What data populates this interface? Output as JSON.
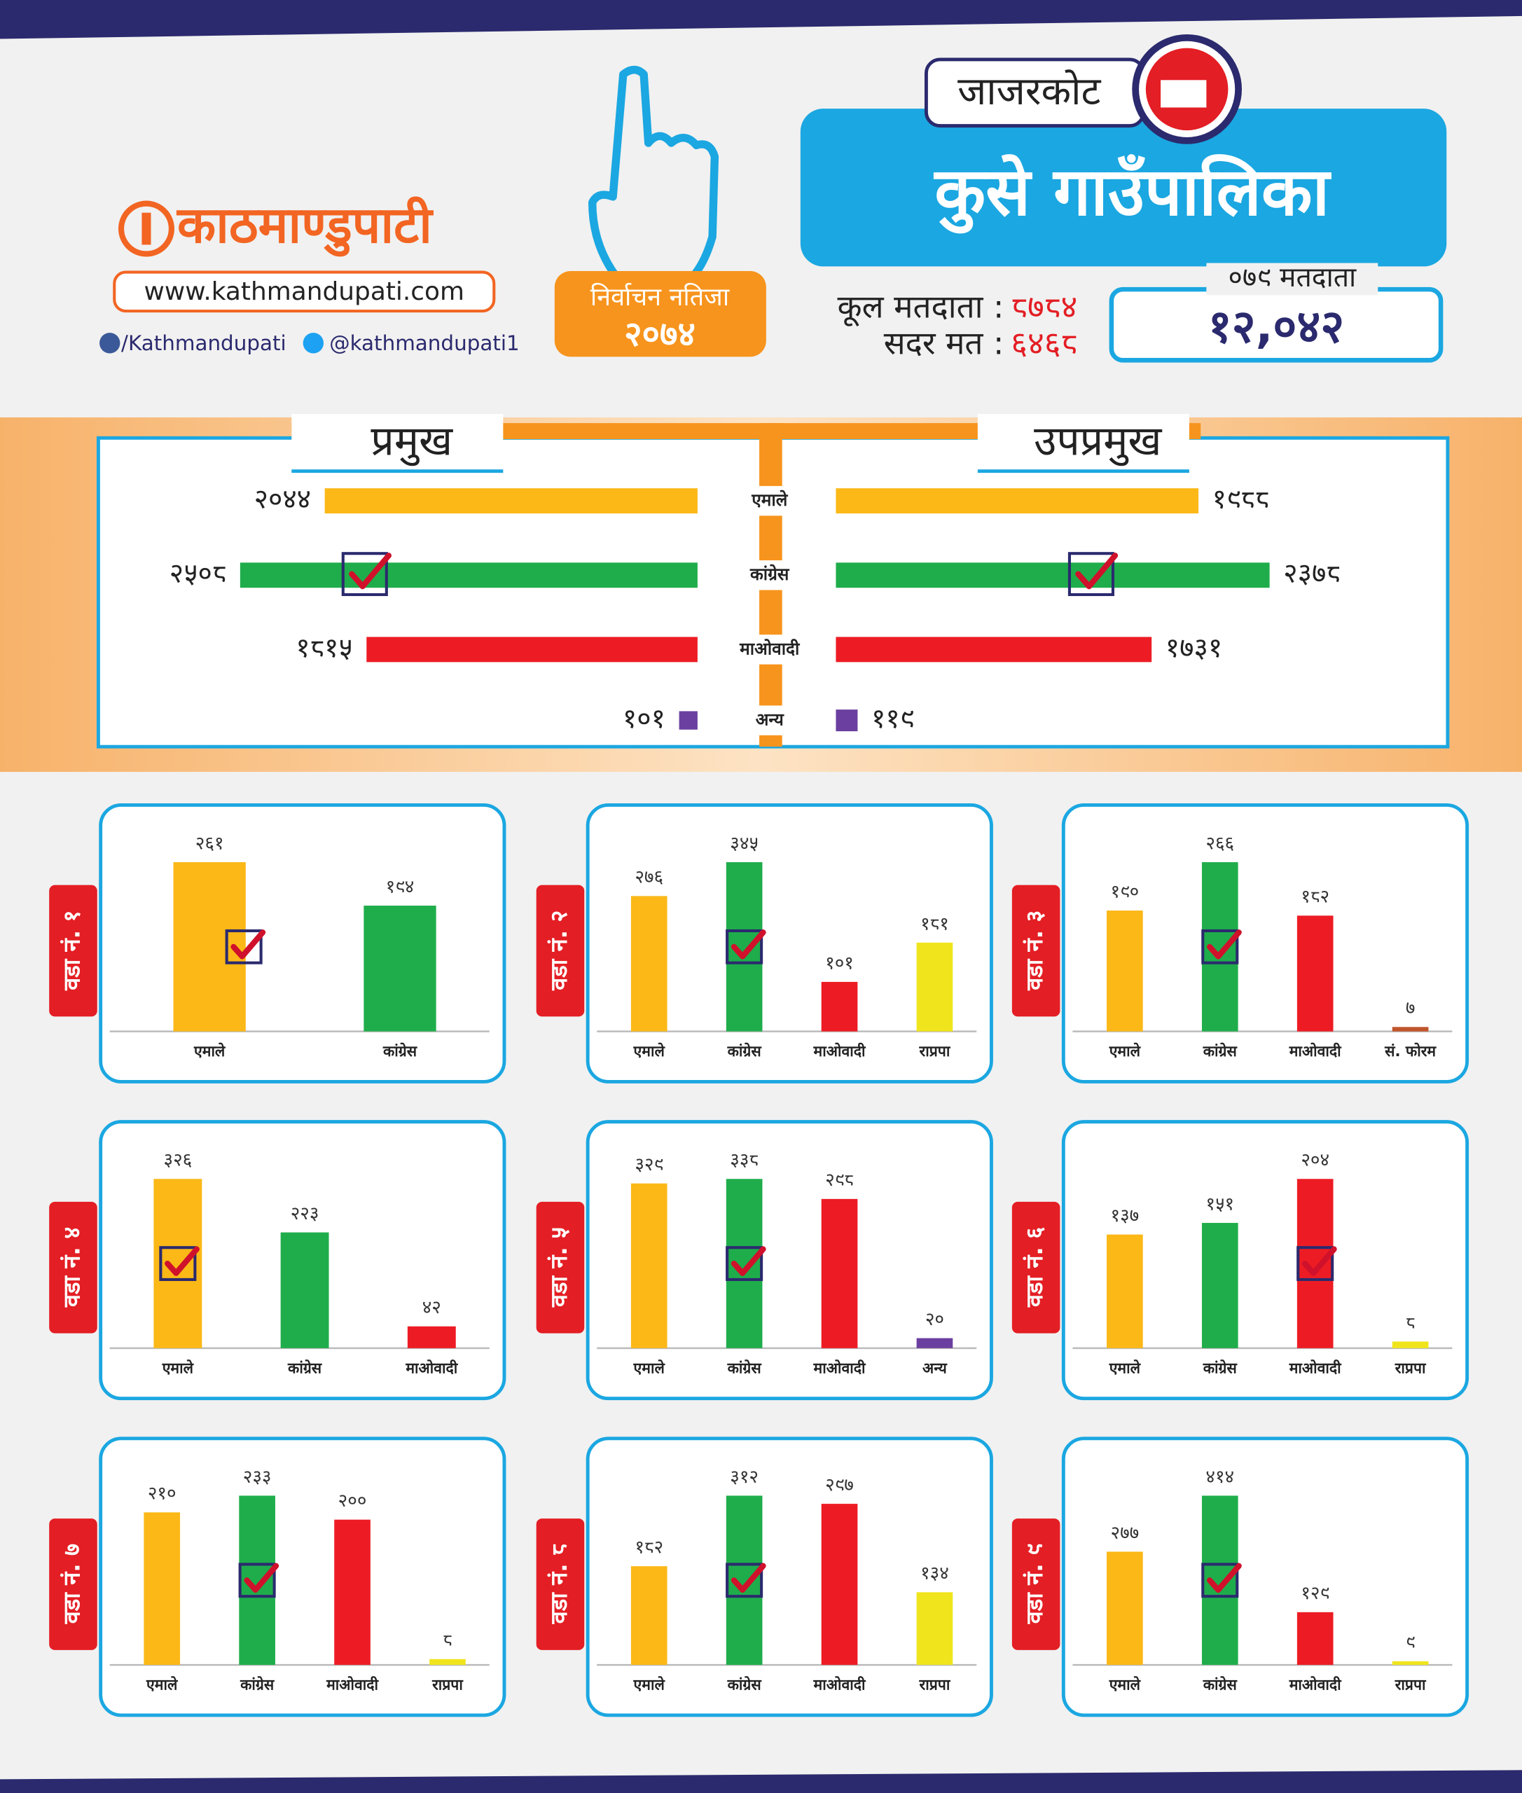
{
  "header": {
    "brand": "काठमाण्डुपाटी",
    "website": "www.kathmandupati.com",
    "facebook": "/Kathmandupati",
    "twitter": "@kathmandupati1",
    "badge_title": "निर्वाचन नतिजा",
    "badge_year": "२०७४",
    "district": "जाजरकोट",
    "municipality": "कुसे गाउँपालिका",
    "total_voters_label": "कूल मतदाता :",
    "total_voters": "८७८४",
    "valid_votes_label": "सदर मत :",
    "valid_votes": "६४६८",
    "voters_2079_label": "०७९ मतदाता",
    "voters_2079": "१२,०४२"
  },
  "chart_data": [
    {
      "type": "bar",
      "categories": [
        "एमाले",
        "कांग्रेस",
        "माओवादी",
        "अन्य"
      ],
      "colors": [
        "#fbb817",
        "#1fad4b",
        "#ed1c24",
        "#6b3fa0"
      ],
      "series": [
        {
          "name": "प्रमुख",
          "values": [
            2044,
            2508,
            1815,
            101
          ],
          "value_labels": [
            "२०४४",
            "२५०८",
            "१८१५",
            "१०१"
          ],
          "winner": 1
        },
        {
          "name": "उपप्रमुख",
          "values": [
            1988,
            2378,
            1731,
            119
          ],
          "value_labels": [
            "१९८८",
            "२३७८",
            "१७३१",
            "११९"
          ],
          "winner": 1
        }
      ]
    },
    {
      "type": "bar",
      "title": "वडा नं. १",
      "categories": [
        "एमाले",
        "कांग्रेस"
      ],
      "colors": [
        "#fbb817",
        "#1fad4b"
      ],
      "values": [
        261,
        194
      ],
      "value_labels": [
        "२६१",
        "१९४"
      ],
      "winner": 0
    },
    {
      "type": "bar",
      "title": "वडा नं. २",
      "categories": [
        "एमाले",
        "कांग्रेस",
        "माओवादी",
        "राप्रपा"
      ],
      "colors": [
        "#fbb817",
        "#1fad4b",
        "#ed1c24",
        "#f0e51d"
      ],
      "values": [
        276,
        345,
        101,
        181
      ],
      "value_labels": [
        "२७६",
        "३४५",
        "१०१",
        "१८१"
      ],
      "winner": 1
    },
    {
      "type": "bar",
      "title": "वडा नं. ३",
      "categories": [
        "एमाले",
        "कांग्रेस",
        "माओवादी",
        "सं. फोरम"
      ],
      "colors": [
        "#fbb817",
        "#1fad4b",
        "#ed1c24",
        "#c0552b"
      ],
      "values": [
        190,
        266,
        182,
        7
      ],
      "value_labels": [
        "१९०",
        "२६६",
        "१८२",
        "७"
      ],
      "winner": 1
    },
    {
      "type": "bar",
      "title": "वडा नं. ४",
      "categories": [
        "एमाले",
        "कांग्रेस",
        "माओवादी"
      ],
      "colors": [
        "#fbb817",
        "#1fad4b",
        "#ed1c24"
      ],
      "values": [
        326,
        223,
        42
      ],
      "value_labels": [
        "३२६",
        "२२३",
        "४२"
      ],
      "winner": 0
    },
    {
      "type": "bar",
      "title": "वडा नं. ५",
      "categories": [
        "एमाले",
        "कांग्रेस",
        "माओवादी",
        "अन्य"
      ],
      "colors": [
        "#fbb817",
        "#1fad4b",
        "#ed1c24",
        "#6b3fa0"
      ],
      "values": [
        329,
        338,
        298,
        20
      ],
      "value_labels": [
        "३२९",
        "३३८",
        "२९८",
        "२०"
      ],
      "winner": 1
    },
    {
      "type": "bar",
      "title": "वडा नं. ६",
      "categories": [
        "एमाले",
        "कांग्रेस",
        "माओवादी",
        "राप्रपा"
      ],
      "colors": [
        "#fbb817",
        "#1fad4b",
        "#ed1c24",
        "#f0e51d"
      ],
      "values": [
        137,
        151,
        204,
        8
      ],
      "value_labels": [
        "१३७",
        "१५१",
        "२०४",
        "८"
      ],
      "winner": 2
    },
    {
      "type": "bar",
      "title": "वडा नं. ७",
      "categories": [
        "एमाले",
        "कांग्रेस",
        "माओवादी",
        "राप्रपा"
      ],
      "colors": [
        "#fbb817",
        "#1fad4b",
        "#ed1c24",
        "#f0e51d"
      ],
      "values": [
        210,
        233,
        200,
        8
      ],
      "value_labels": [
        "२१०",
        "२३३",
        "२००",
        "८"
      ],
      "winner": 1
    },
    {
      "type": "bar",
      "title": "वडा नं. ८",
      "categories": [
        "एमाले",
        "कांग्रेस",
        "माओवादी",
        "राप्रपा"
      ],
      "colors": [
        "#fbb817",
        "#1fad4b",
        "#ed1c24",
        "#f0e51d"
      ],
      "values": [
        182,
        312,
        297,
        134
      ],
      "value_labels": [
        "१८२",
        "३१२",
        "२९७",
        "१३४"
      ],
      "winner": 1
    },
    {
      "type": "bar",
      "title": "वडा नं. ९",
      "categories": [
        "एमाले",
        "कांग्रेस",
        "माओवादी",
        "राप्रपा"
      ],
      "colors": [
        "#fbb817",
        "#1fad4b",
        "#ed1c24",
        "#f0e51d"
      ],
      "values": [
        277,
        414,
        129,
        9
      ],
      "value_labels": [
        "२७७",
        "४१४",
        "१२९",
        "९"
      ],
      "winner": 1
    }
  ]
}
